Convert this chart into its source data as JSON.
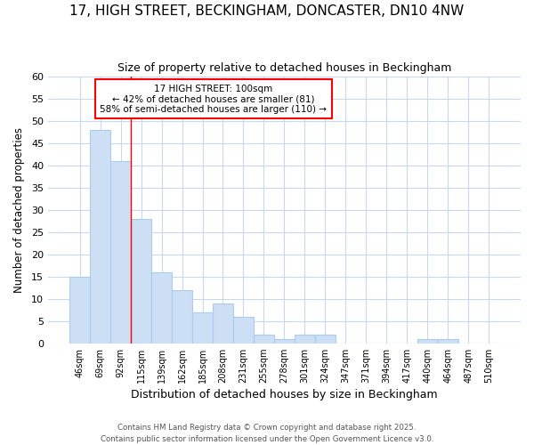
{
  "title": "17, HIGH STREET, BECKINGHAM, DONCASTER, DN10 4NW",
  "subtitle": "Size of property relative to detached houses in Beckingham",
  "xlabel": "Distribution of detached houses by size in Beckingham",
  "ylabel": "Number of detached properties",
  "bar_color": "#ccdff5",
  "bar_edge_color": "#aaccee",
  "fig_background_color": "#ffffff",
  "plot_background_color": "#ffffff",
  "grid_color": "#c8d8ee",
  "categories": [
    "46sqm",
    "69sqm",
    "92sqm",
    "115sqm",
    "139sqm",
    "162sqm",
    "185sqm",
    "208sqm",
    "231sqm",
    "255sqm",
    "278sqm",
    "301sqm",
    "324sqm",
    "347sqm",
    "371sqm",
    "394sqm",
    "417sqm",
    "440sqm",
    "464sqm",
    "487sqm",
    "510sqm"
  ],
  "values": [
    15,
    48,
    41,
    28,
    16,
    12,
    7,
    9,
    6,
    2,
    1,
    2,
    2,
    0,
    0,
    0,
    0,
    1,
    1,
    0,
    0
  ],
  "ylim": [
    0,
    60
  ],
  "yticks": [
    0,
    5,
    10,
    15,
    20,
    25,
    30,
    35,
    40,
    45,
    50,
    55,
    60
  ],
  "red_line_x": 2.5,
  "annotation_title": "17 HIGH STREET: 100sqm",
  "annotation_line1": "← 42% of detached houses are smaller (81)",
  "annotation_line2": "58% of semi-detached houses are larger (110) →",
  "footer_line1": "Contains HM Land Registry data © Crown copyright and database right 2025.",
  "footer_line2": "Contains public sector information licensed under the Open Government Licence v3.0."
}
